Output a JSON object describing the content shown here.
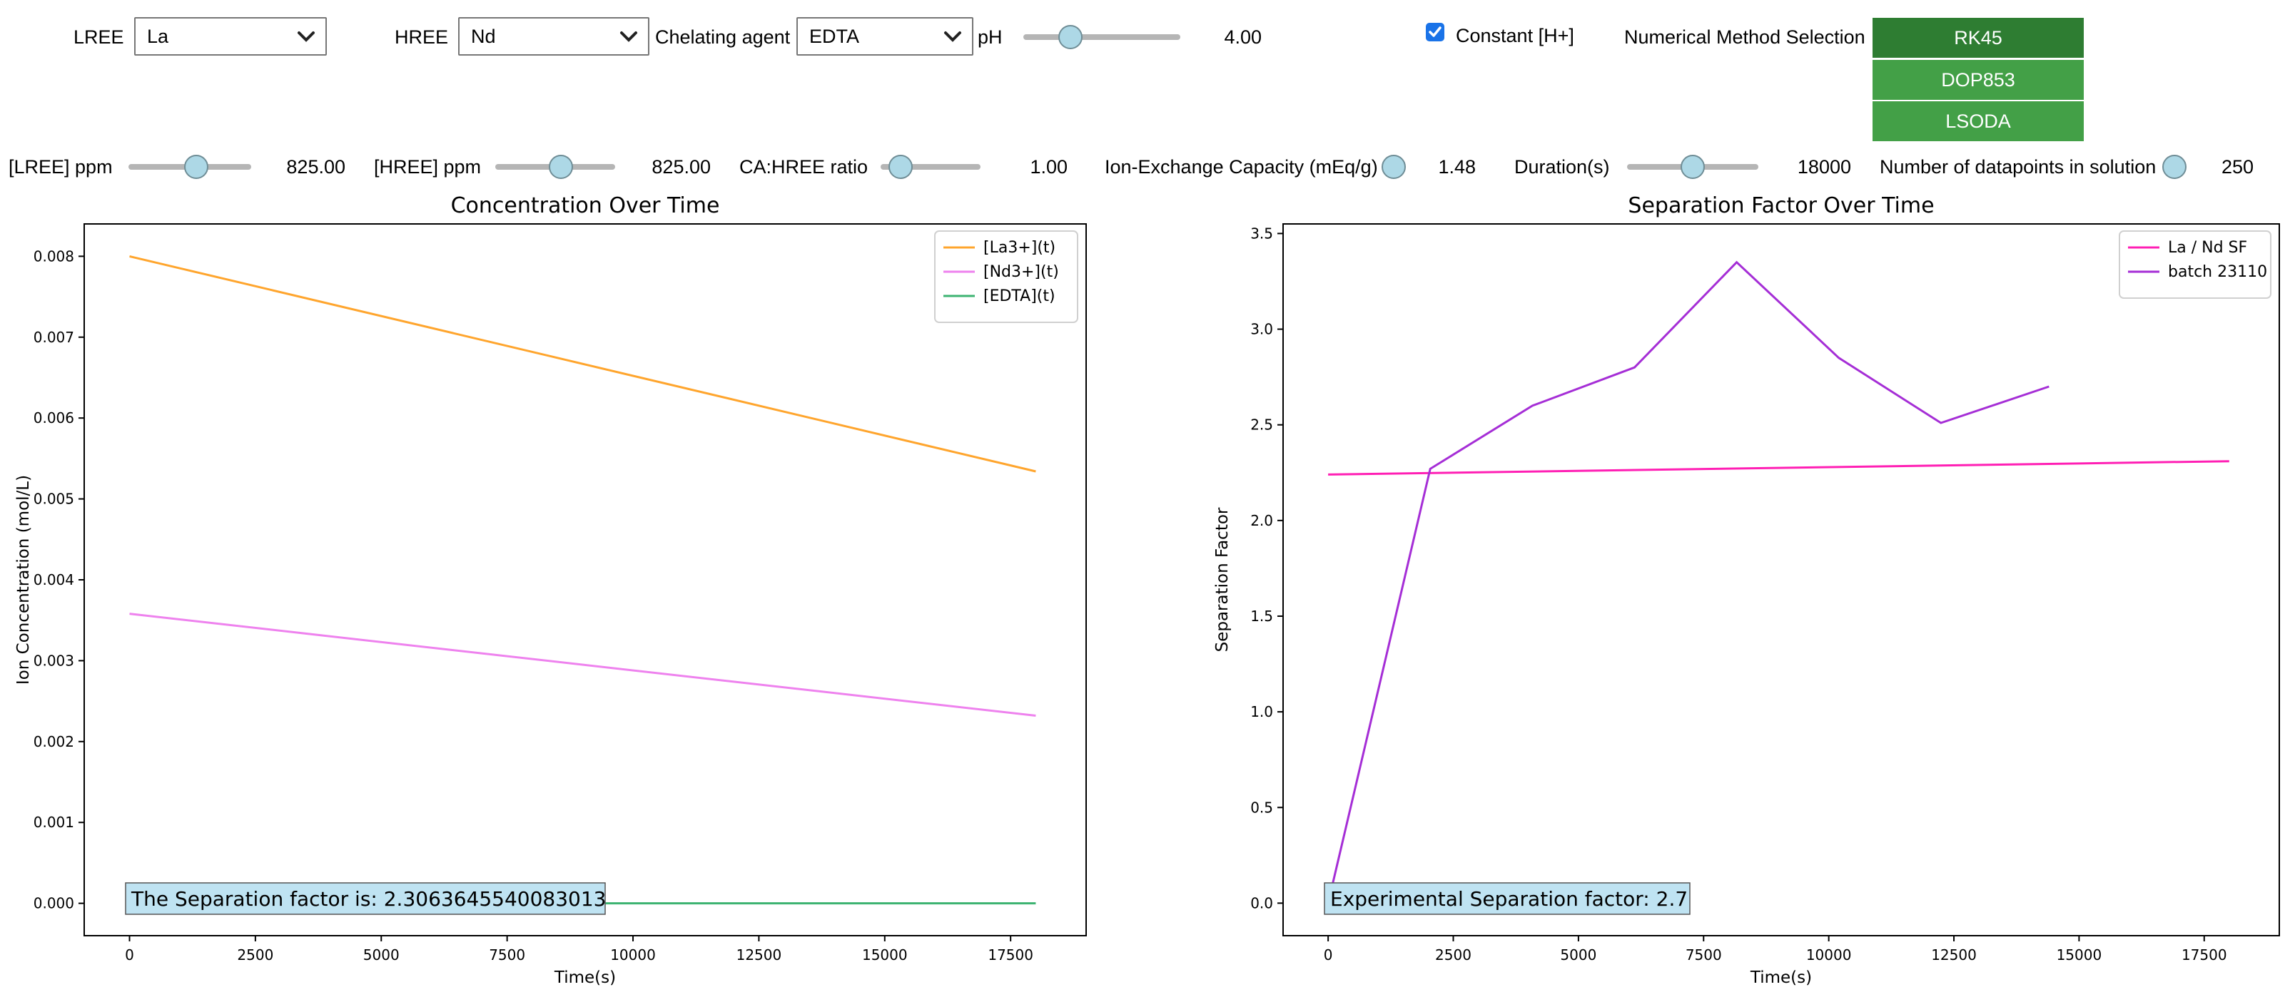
{
  "controls": {
    "lree": {
      "label": "LREE",
      "value": "La"
    },
    "hree": {
      "label": "HREE",
      "value": "Nd"
    },
    "chelating": {
      "label": "Chelating agent",
      "value": "EDTA"
    },
    "ph": {
      "label": "pH",
      "value_text": "4.00",
      "fraction": 0.3
    },
    "constant_h": {
      "label": "Constant [H+]",
      "checked": true
    },
    "method": {
      "label": "Numerical Method Selection",
      "options": [
        "RK45",
        "DOP853",
        "LSODA"
      ],
      "selected": "RK45"
    },
    "lree_ppm": {
      "label": "[LREE] ppm",
      "value_text": "825.00",
      "fraction": 0.55
    },
    "hree_ppm": {
      "label": "[HREE] ppm",
      "value_text": "825.00",
      "fraction": 0.55
    },
    "ca_ratio": {
      "label": "CA:HREE ratio",
      "value_text": "1.00",
      "fraction": 0.2
    },
    "capacity": {
      "label": "Ion-Exchange Capacity (mEq/g)",
      "value_text": "1.48",
      "fraction": 0.5
    },
    "duration": {
      "label": "Duration(s)",
      "value_text": "18000",
      "fraction": 0.5
    },
    "datapoints": {
      "label": "Number of datapoints in solution",
      "value_text": "250",
      "fraction": 0.5
    }
  },
  "colors": {
    "la": "#ffa52d",
    "nd": "#ee82ee",
    "edta": "#3cb371",
    "sf": "#ff1fb4",
    "batch": "#a52ed6",
    "thumb": "#add8e6",
    "btn_active": "#2e7d32",
    "btn": "#43a047",
    "annot": "#bfe3f2"
  },
  "chart_data": [
    {
      "type": "line",
      "title": "Concentration Over Time",
      "xlabel": "Time(s)",
      "ylabel": "Ion Concentration (mol/L)",
      "xlim": [
        -900,
        19000
      ],
      "ylim": [
        -0.0004,
        0.0084
      ],
      "xticks": [
        0,
        2500,
        5000,
        7500,
        10000,
        12500,
        15000,
        17500
      ],
      "yticks": [
        0.0,
        0.001,
        0.002,
        0.003,
        0.004,
        0.005,
        0.006,
        0.007,
        0.008
      ],
      "ytick_labels": [
        "0.000",
        "0.001",
        "0.002",
        "0.003",
        "0.004",
        "0.005",
        "0.006",
        "0.007",
        "0.008"
      ],
      "legend": "top-right",
      "series": [
        {
          "name": "[La3+](t)",
          "color_key": "la",
          "x": [
            0,
            18000
          ],
          "y": [
            0.008,
            0.00534
          ]
        },
        {
          "name": "[Nd3+](t)",
          "color_key": "nd",
          "x": [
            0,
            18000
          ],
          "y": [
            0.00358,
            0.00232
          ]
        },
        {
          "name": "[EDTA](t)",
          "color_key": "edta",
          "x": [
            0,
            18000
          ],
          "y": [
            0.0,
            0.0
          ]
        }
      ],
      "annotation": "The Separation factor is: 2.3063645540083013"
    },
    {
      "type": "line",
      "title": "Separation Factor Over Time",
      "xlabel": "Time(s)",
      "ylabel": "Separation Factor",
      "xlim": [
        -900,
        19000
      ],
      "ylim": [
        -0.17,
        3.55
      ],
      "xticks": [
        0,
        2500,
        5000,
        7500,
        10000,
        12500,
        15000,
        17500
      ],
      "yticks": [
        0.0,
        0.5,
        1.0,
        1.5,
        2.0,
        2.5,
        3.0,
        3.5
      ],
      "ytick_labels": [
        "0.0",
        "0.5",
        "1.0",
        "1.5",
        "2.0",
        "2.5",
        "3.0",
        "3.5"
      ],
      "legend": "top-right",
      "series": [
        {
          "name": "La / Nd SF",
          "color_key": "sf",
          "x": [
            0,
            18000
          ],
          "y": [
            2.24,
            2.31
          ]
        },
        {
          "name": "batch 23110",
          "color_key": "batch",
          "x": [
            0,
            2040,
            4080,
            6120,
            8160,
            10200,
            12240,
            14400
          ],
          "y": [
            0.0,
            2.27,
            2.6,
            2.8,
            3.35,
            2.85,
            2.51,
            2.7
          ]
        }
      ],
      "annotation": "Experimental Separation factor: 2.7"
    }
  ]
}
